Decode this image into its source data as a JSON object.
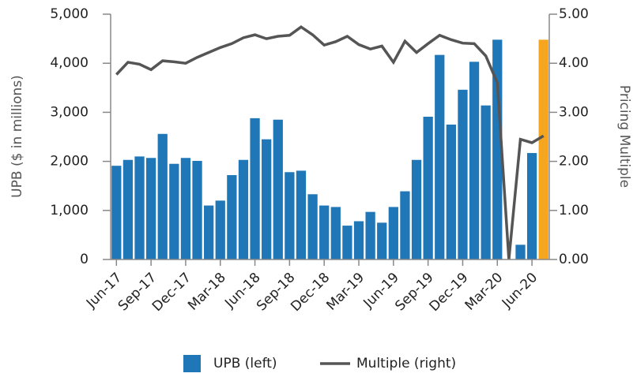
{
  "chart_data": {
    "type": "bar_line",
    "categories": [
      "Jun-17",
      null,
      null,
      "Sep-17",
      null,
      null,
      "Dec-17",
      null,
      null,
      "Mar-18",
      null,
      null,
      "Jun-18",
      null,
      null,
      "Sep-18",
      null,
      null,
      "Dec-18",
      null,
      null,
      "Mar-19",
      null,
      null,
      "Jun-19",
      null,
      null,
      "Sep-19",
      null,
      null,
      "Dec-19",
      null,
      null,
      "Mar-20",
      null,
      null,
      "Jun-20",
      null
    ],
    "series": [
      {
        "name": "UPB (left)",
        "type": "bar",
        "color": "#2077b8",
        "colors": [
          "#2077b8",
          "#2077b8",
          "#2077b8",
          "#2077b8",
          "#2077b8",
          "#2077b8",
          "#2077b8",
          "#2077b8",
          "#2077b8",
          "#2077b8",
          "#2077b8",
          "#2077b8",
          "#2077b8",
          "#2077b8",
          "#2077b8",
          "#2077b8",
          "#2077b8",
          "#2077b8",
          "#2077b8",
          "#2077b8",
          "#2077b8",
          "#2077b8",
          "#2077b8",
          "#2077b8",
          "#2077b8",
          "#2077b8",
          "#2077b8",
          "#2077b8",
          "#2077b8",
          "#2077b8",
          "#2077b8",
          "#2077b8",
          "#2077b8",
          "#2077b8",
          "#2077b8",
          "#2077b8",
          "#2077b8",
          "#f5a61e"
        ],
        "values": [
          1910,
          2030,
          2100,
          2070,
          2560,
          1950,
          2070,
          2010,
          1100,
          1200,
          1720,
          2030,
          2880,
          2450,
          2850,
          1780,
          1810,
          1330,
          1100,
          1070,
          690,
          780,
          970,
          750,
          1070,
          1390,
          2030,
          2910,
          4170,
          2750,
          3460,
          4030,
          3140,
          4480,
          0,
          300,
          2170,
          4480
        ]
      },
      {
        "name": "Multiple (right)",
        "type": "line",
        "axis": "y2",
        "color": "#555555",
        "values": [
          3.77,
          4.02,
          3.98,
          3.87,
          4.05,
          4.03,
          4.0,
          4.12,
          4.22,
          4.32,
          4.4,
          4.52,
          4.58,
          4.5,
          4.55,
          4.57,
          4.74,
          4.58,
          4.37,
          4.44,
          4.55,
          4.38,
          4.29,
          4.35,
          4.02,
          4.45,
          4.22,
          4.4,
          4.57,
          4.48,
          4.41,
          4.4,
          4.15,
          3.6,
          0.0,
          2.45,
          2.38,
          2.52
        ]
      }
    ],
    "y_label": "UPB ($ in millions)",
    "y2_label": "Pricing Multiple",
    "ylim": [
      0,
      5000
    ],
    "yticks": [
      0,
      {
        "value": 1000,
        "label": "1,000"
      },
      {
        "value": 2000,
        "label": "2,000"
      },
      {
        "value": 3000,
        "label": "3,000"
      },
      {
        "value": 4000,
        "label": "4,000"
      },
      {
        "value": 5000,
        "label": "5,000"
      }
    ],
    "y2lim": [
      0,
      5
    ],
    "y2ticks": [
      {
        "value": 0,
        "label": "0.00"
      },
      {
        "value": 1,
        "label": "1.00"
      },
      {
        "value": 2,
        "label": "2.00"
      },
      {
        "value": 3,
        "label": "3.00"
      },
      {
        "value": 4,
        "label": "4.00"
      },
      {
        "value": 5,
        "label": "5.00"
      }
    ],
    "legend": "bottom"
  }
}
